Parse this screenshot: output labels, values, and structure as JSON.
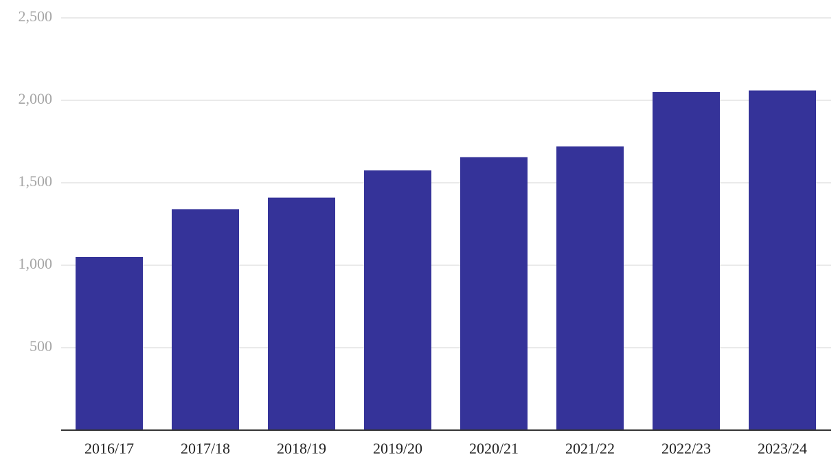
{
  "chart_data": {
    "type": "bar",
    "categories": [
      "2016/17",
      "2017/18",
      "2018/19",
      "2019/20",
      "2020/21",
      "2021/22",
      "2022/23",
      "2023/24"
    ],
    "values": [
      1050,
      1340,
      1410,
      1575,
      1655,
      1720,
      2050,
      2060
    ],
    "color": "#353399",
    "ylim": [
      0,
      2500
    ],
    "yticks": [
      500,
      {
        "value": 1000,
        "label": "1,000"
      },
      {
        "value": 1500,
        "label": "1,500"
      },
      {
        "value": 2000,
        "label": "2,000"
      },
      {
        "value": 2500,
        "label": "2,500"
      }
    ],
    "grid": true
  }
}
